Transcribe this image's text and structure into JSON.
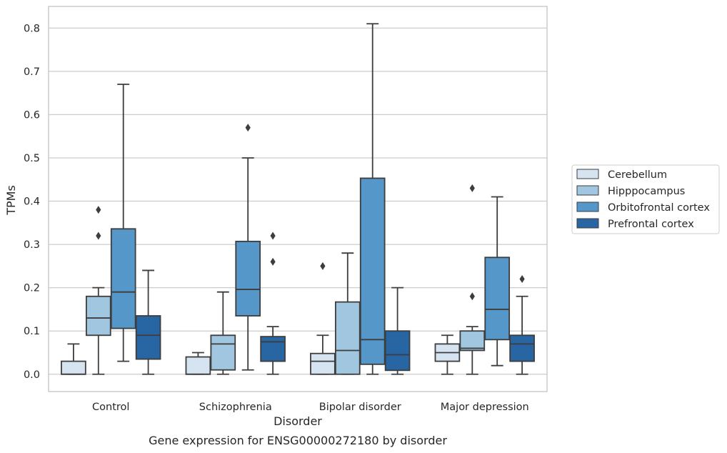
{
  "chart_data": {
    "type": "boxplot",
    "title": "",
    "caption": "Gene expression for ENSG00000272180 by disorder",
    "xlabel": "Disorder",
    "ylabel": "TPMs",
    "ylim": [
      -0.04,
      0.85
    ],
    "yticks": [
      0.0,
      0.1,
      0.2,
      0.3,
      0.4,
      0.5,
      0.6,
      0.7,
      0.8
    ],
    "ytick_labels": [
      "0.0",
      "0.1",
      "0.2",
      "0.3",
      "0.4",
      "0.5",
      "0.6",
      "0.7",
      "0.8"
    ],
    "categories": [
      "Control",
      "Schizophrenia",
      "Bipolar disorder",
      "Major depression"
    ],
    "grid": "horizontal",
    "legend_position": "right",
    "series": [
      {
        "name": "Cerebellum",
        "color": "#d6e4f2",
        "boxes": [
          {
            "whislo": 0.0,
            "q1": 0.0,
            "med": 0.0,
            "q3": 0.03,
            "whishi": 0.07,
            "fliers": []
          },
          {
            "whislo": 0.0,
            "q1": 0.0,
            "med": 0.0,
            "q3": 0.04,
            "whishi": 0.05,
            "fliers": []
          },
          {
            "whislo": 0.0,
            "q1": 0.0,
            "med": 0.03,
            "q3": 0.048,
            "whishi": 0.09,
            "fliers": [
              0.25
            ]
          },
          {
            "whislo": 0.0,
            "q1": 0.03,
            "med": 0.05,
            "q3": 0.07,
            "whishi": 0.09,
            "fliers": []
          }
        ]
      },
      {
        "name": "Hipppocampus",
        "color": "#a0c6e0",
        "boxes": [
          {
            "whislo": 0.0,
            "q1": 0.09,
            "med": 0.13,
            "q3": 0.18,
            "whishi": 0.2,
            "fliers": [
              0.32,
              0.38
            ]
          },
          {
            "whislo": 0.0,
            "q1": 0.01,
            "med": 0.07,
            "q3": 0.09,
            "whishi": 0.19,
            "fliers": []
          },
          {
            "whislo": 0.0,
            "q1": 0.0,
            "med": 0.055,
            "q3": 0.167,
            "whishi": 0.28,
            "fliers": []
          },
          {
            "whislo": 0.0,
            "q1": 0.055,
            "med": 0.06,
            "q3": 0.1,
            "whishi": 0.11,
            "fliers": [
              0.18,
              0.43
            ]
          }
        ]
      },
      {
        "name": "Orbitofrontal cortex",
        "color": "#5497c8",
        "boxes": [
          {
            "whislo": 0.03,
            "q1": 0.106,
            "med": 0.19,
            "q3": 0.336,
            "whishi": 0.67,
            "fliers": []
          },
          {
            "whislo": 0.01,
            "q1": 0.135,
            "med": 0.196,
            "q3": 0.307,
            "whishi": 0.5,
            "fliers": [
              0.57
            ]
          },
          {
            "whislo": 0.0,
            "q1": 0.023,
            "med": 0.08,
            "q3": 0.453,
            "whishi": 0.81,
            "fliers": []
          },
          {
            "whislo": 0.02,
            "q1": 0.08,
            "med": 0.15,
            "q3": 0.27,
            "whishi": 0.41,
            "fliers": []
          }
        ]
      },
      {
        "name": "Prefrontal cortex",
        "color": "#2765a3",
        "boxes": [
          {
            "whislo": 0.0,
            "q1": 0.035,
            "med": 0.09,
            "q3": 0.135,
            "whishi": 0.24,
            "fliers": []
          },
          {
            "whislo": 0.0,
            "q1": 0.03,
            "med": 0.075,
            "q3": 0.087,
            "whishi": 0.11,
            "fliers": [
              0.26,
              0.32
            ]
          },
          {
            "whislo": 0.0,
            "q1": 0.009,
            "med": 0.045,
            "q3": 0.1,
            "whishi": 0.2,
            "fliers": []
          },
          {
            "whislo": 0.0,
            "q1": 0.03,
            "med": 0.07,
            "q3": 0.09,
            "whishi": 0.18,
            "fliers": [
              0.22
            ]
          }
        ]
      }
    ]
  }
}
